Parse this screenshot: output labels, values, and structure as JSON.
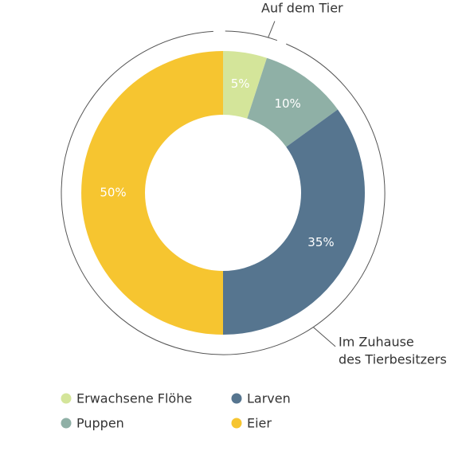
{
  "chart_data": {
    "type": "pie",
    "donut": true,
    "categories": [
      "Erwachsene Flöhe",
      "Puppen",
      "Larven",
      "Eier"
    ],
    "values": [
      5,
      10,
      35,
      50
    ],
    "value_labels": [
      "5%",
      "10%",
      "35%",
      "50%"
    ],
    "colors": [
      "#d4e59a",
      "#8fb0a6",
      "#56758f",
      "#f6c530"
    ],
    "annotations": [
      {
        "lines": [
          "Auf dem Tier"
        ]
      },
      {
        "lines": [
          "Im Zuhause",
          "des Tierbesitzers"
        ]
      }
    ]
  }
}
